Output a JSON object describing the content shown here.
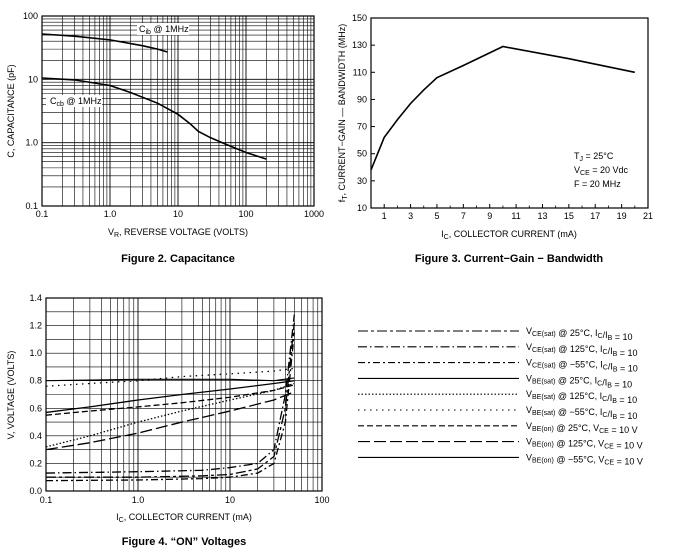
{
  "figures": {
    "capacitance": {
      "caption": "Figure 2. Capacitance"
    },
    "bandwidth": {
      "caption": "Figure 3. Current−Gain − Bandwidth"
    },
    "on_voltages": {
      "caption": "Figure 4. “ON” Voltages"
    }
  },
  "chart_data": [
    {
      "id": "capacitance",
      "type": "line",
      "title": "",
      "xlabel": "VR, REVERSE VOLTAGE (VOLTS)",
      "ylabel": "C, CAPACITANCE (pF)",
      "xscale": "log",
      "yscale": "log",
      "xlim": [
        0.1,
        1000
      ],
      "ylim": [
        0.1,
        100
      ],
      "grid": true,
      "x_ticks": [
        "0.1",
        "1.0",
        "10",
        "100",
        "1000"
      ],
      "y_ticks": [
        "100",
        "10",
        "1.0",
        "0.1"
      ],
      "series": [
        {
          "label": "Cib @ 1MHz",
          "x": [
            0.1,
            0.3,
            1,
            3,
            5,
            7
          ],
          "y": [
            52,
            48,
            42,
            34,
            30,
            27
          ]
        },
        {
          "label": "Ccb @ 1MHz",
          "x": [
            0.1,
            0.3,
            1,
            2,
            5,
            10,
            15,
            20,
            30,
            50,
            100,
            200
          ],
          "y": [
            10.5,
            9.8,
            8,
            6.2,
            4.2,
            2.8,
            2,
            1.5,
            1.2,
            0.95,
            0.7,
            0.55
          ]
        }
      ]
    },
    {
      "id": "bandwidth",
      "type": "line",
      "title": "",
      "xlabel": "IC, COLLECTOR CURRENT (mA)",
      "ylabel": "fT, CURRENT−GAIN — BANDWIDTH (MHz)",
      "xlim": [
        0,
        21
      ],
      "ylim": [
        10,
        150
      ],
      "grid": false,
      "x_ticks": [
        "1",
        "3",
        "5",
        "7",
        "9",
        "11",
        "13",
        "15",
        "17",
        "19",
        "21"
      ],
      "y_ticks": [
        "150",
        "130",
        "110",
        "90",
        "70",
        "50",
        "30",
        "10"
      ],
      "series": [
        {
          "x": [
            0,
            0.5,
            1,
            2,
            3,
            4,
            5,
            7,
            10,
            15,
            20
          ],
          "y": [
            38,
            50,
            62,
            75,
            87,
            97,
            106,
            115,
            129,
            120,
            110
          ]
        }
      ],
      "annotations": [
        "TJ = 25°C",
        "VCE = 20 Vdc",
        "F = 20 MHz"
      ]
    },
    {
      "id": "on_voltages",
      "type": "line",
      "title": "",
      "xlabel": "IC, COLLECTOR CURRENT (mA)",
      "ylabel": "V, VOLTAGE (VOLTS)",
      "xscale": "log",
      "xlim": [
        0.1,
        100
      ],
      "ylim": [
        0,
        1.4
      ],
      "grid": true,
      "x_ticks": [
        "0.1",
        "1.0",
        "10",
        "100"
      ],
      "y_ticks": [
        "1.4",
        "1.2",
        "1.0",
        "0.8",
        "0.6",
        "0.4",
        "0.2",
        "0.0"
      ],
      "legend": "right",
      "series": [
        {
          "label": "VCE(sat) @ 25°C, IC/IB = 10",
          "style": "long-short",
          "x": [
            0.1,
            1,
            5,
            10,
            20,
            30,
            40,
            50
          ],
          "y": [
            0.1,
            0.1,
            0.11,
            0.12,
            0.16,
            0.25,
            0.6,
            1.22
          ]
        },
        {
          "label": "VCE(sat) @ 125°C, IC/IB = 10",
          "style": "long-dot",
          "x": [
            0.1,
            1,
            5,
            10,
            20,
            30,
            40,
            50
          ],
          "y": [
            0.13,
            0.14,
            0.15,
            0.17,
            0.2,
            0.3,
            0.7,
            1.28
          ]
        },
        {
          "label": "VCE(sat) @ −55°C, IC/IB = 10",
          "style": "dash-dot",
          "x": [
            0.1,
            1,
            5,
            10,
            20,
            30,
            40,
            50
          ],
          "y": [
            0.075,
            0.08,
            0.09,
            0.1,
            0.13,
            0.2,
            0.5,
            1.15
          ]
        },
        {
          "label": "VBE(sat) @ 25°C, IC/IB = 10",
          "style": "solid",
          "x": [
            0.1,
            0.3,
            1,
            3,
            10,
            30,
            50
          ],
          "y": [
            0.57,
            0.61,
            0.66,
            0.7,
            0.74,
            0.78,
            0.8
          ]
        },
        {
          "label": "VBE(sat) @ 125°C, IC/IB = 10",
          "style": "dotted",
          "x": [
            0.1,
            0.3,
            1,
            3,
            10,
            30,
            50
          ],
          "y": [
            0.32,
            0.4,
            0.5,
            0.58,
            0.66,
            0.73,
            0.78
          ]
        },
        {
          "label": "VBE(sat) @ −55°C, IC/IB = 10",
          "style": "sparse-dot",
          "x": [
            0.1,
            0.3,
            1,
            3,
            10,
            30,
            50
          ],
          "y": [
            0.76,
            0.78,
            0.8,
            0.83,
            0.85,
            0.87,
            0.89
          ]
        },
        {
          "label": "VBE(on) @ 25°C, VCE = 10 V",
          "style": "dash",
          "x": [
            0.1,
            0.3,
            1,
            3,
            10,
            30,
            50
          ],
          "y": [
            0.55,
            0.58,
            0.61,
            0.64,
            0.68,
            0.73,
            0.77
          ]
        },
        {
          "label": "VBE(on) @ 125°C, VCE = 10 V",
          "style": "long-dash",
          "x": [
            0.1,
            0.3,
            1,
            3,
            10,
            30,
            50
          ],
          "y": [
            0.3,
            0.35,
            0.42,
            0.5,
            0.58,
            0.66,
            0.72
          ]
        },
        {
          "label": "VBE(on) @ −55°C, VCE = 10 V",
          "style": "solid-thin",
          "x": [
            0.1,
            0.3,
            1,
            3,
            10,
            30,
            50
          ],
          "y": [
            0.8,
            0.805,
            0.81,
            0.81,
            0.81,
            0.8,
            0.82
          ]
        }
      ]
    }
  ]
}
